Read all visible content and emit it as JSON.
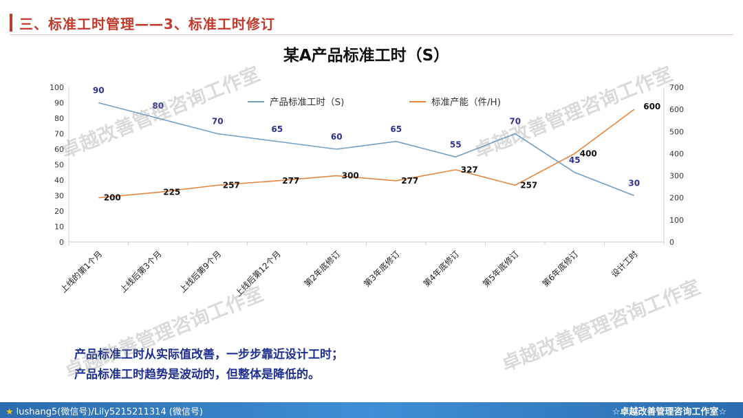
{
  "header": {
    "title": "三、标准工时管理——3、标准工时修订"
  },
  "chart_data": {
    "type": "line",
    "title": "某A产品标准工时（S）",
    "categories": [
      "上线的第1个月",
      "上线后第3个月",
      "上线后第9个月",
      "上线后第12个月",
      "第2年底修订",
      "第3年底修订",
      "第4年底修订",
      "第5年底修订",
      "第6年底修订",
      "设计工时"
    ],
    "series": [
      {
        "name": "产品标准工时（S)",
        "axis": "left",
        "color": "#6f9fc4",
        "label_color": "#2e3192",
        "values": [
          90,
          80,
          70,
          65,
          60,
          65,
          55,
          70,
          45,
          30
        ]
      },
      {
        "name": "标准产能（件/H)",
        "axis": "right",
        "color": "#e3853d",
        "label_color": "#111111",
        "values": [
          200,
          225,
          257,
          277,
          300,
          277,
          327,
          257,
          400,
          600
        ]
      }
    ],
    "ylim_left": [
      0,
      100
    ],
    "yticks_left": [
      "0",
      "10",
      "20",
      "30",
      "40",
      "50",
      "60",
      "70",
      "80",
      "90",
      "100"
    ],
    "ylim_right": [
      0,
      700
    ],
    "yticks_right": [
      "0",
      "100",
      "200",
      "300",
      "400",
      "500",
      "600",
      "700"
    ],
    "legend_position": "top-center",
    "grid": false
  },
  "conclusions": [
    "产品标准工时从实际值改善，一步步靠近设计工时；",
    "产品标准工时趋势是波动的，但整体是降低的。"
  ],
  "watermark": "卓越改善管理咨询工作室",
  "footer": {
    "left": "lushang5(微信号)/Lily5215211314 (微信号)",
    "right": "☆卓越改善管理咨询工作室☆"
  }
}
